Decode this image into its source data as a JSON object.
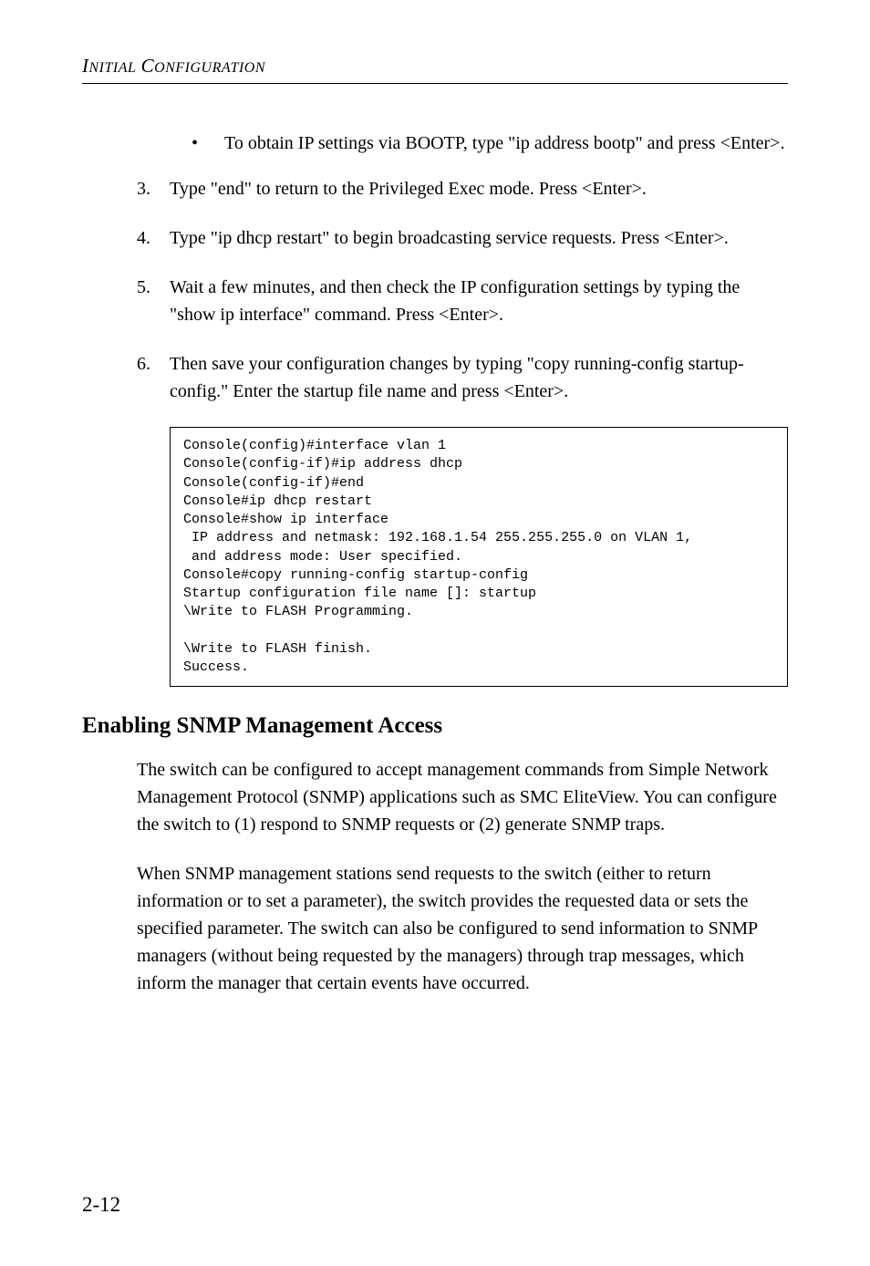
{
  "header": {
    "text": "INITIAL CONFIGURATION"
  },
  "bullet": {
    "marker": "•",
    "text": "To obtain IP settings via BOOTP, type \"ip address bootp\" and press <Enter>."
  },
  "steps": [
    {
      "num": "3.",
      "text": "Type \"end\" to return to the Privileged Exec mode. Press <Enter>."
    },
    {
      "num": "4.",
      "text": "Type \"ip dhcp restart\" to begin broadcasting service requests. Press <Enter>."
    },
    {
      "num": "5.",
      "text": "Wait a few minutes, and then check the IP configuration settings by typing the \"show ip interface\" command. Press <Enter>."
    },
    {
      "num": "6.",
      "text": "Then save your configuration changes by typing \"copy running-config startup-config.\" Enter the startup file name and press <Enter>."
    }
  ],
  "code": "Console(config)#interface vlan 1\nConsole(config-if)#ip address dhcp\nConsole(config-if)#end\nConsole#ip dhcp restart\nConsole#show ip interface\n IP address and netmask: 192.168.1.54 255.255.255.0 on VLAN 1,\n and address mode: User specified.\nConsole#copy running-config startup-config\nStartup configuration file name []: startup\n\\Write to FLASH Programming.\n\n\\Write to FLASH finish.\nSuccess.",
  "section_heading": "Enabling SNMP Management Access",
  "para1": "The switch can be configured to accept management commands from Simple Network Management Protocol (SNMP) applications such as SMC EliteView. You can configure the switch to (1) respond to SNMP requests or (2) generate SNMP traps.",
  "para2": "When SNMP management stations send requests to the switch (either to return information or to set a parameter), the switch provides the requested data or sets the specified parameter. The switch can also be configured to send information to SNMP managers (without being requested by the managers) through trap messages, which inform the manager that certain events have occurred.",
  "page_number": "2-12"
}
